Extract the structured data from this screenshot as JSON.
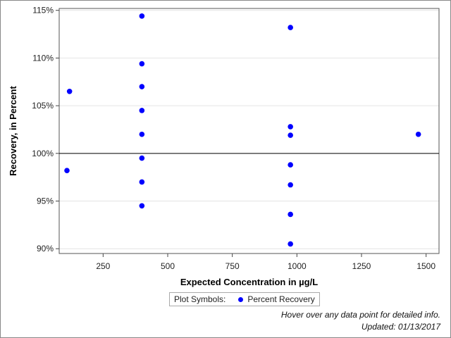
{
  "chart_data": {
    "type": "scatter",
    "xlabel": "Expected Concentration in µg/L",
    "ylabel": "Recovery, in Percent",
    "xlim": [
      80,
      1550
    ],
    "ylim": [
      89.5,
      115.2
    ],
    "xticks": [
      250,
      500,
      750,
      1000,
      1250,
      1500
    ],
    "yticks": [
      90,
      95,
      100,
      105,
      110,
      115
    ],
    "xtick_labels": [
      "250",
      "500",
      "750",
      "1000",
      "1250",
      "1500"
    ],
    "ytick_labels": [
      "90%",
      "95%",
      "100%",
      "105%",
      "110%",
      "115%"
    ],
    "reference_line_y": 100,
    "grid": "horizontal",
    "legend_position": "bottom",
    "series": [
      {
        "name": "Percent Recovery",
        "color": "#0000ff",
        "points": [
          {
            "x": 110,
            "y": 98.2
          },
          {
            "x": 120,
            "y": 106.5
          },
          {
            "x": 400,
            "y": 114.4
          },
          {
            "x": 400,
            "y": 109.4
          },
          {
            "x": 400,
            "y": 107.0
          },
          {
            "x": 400,
            "y": 104.5
          },
          {
            "x": 400,
            "y": 102.0
          },
          {
            "x": 400,
            "y": 99.5
          },
          {
            "x": 400,
            "y": 97.0
          },
          {
            "x": 400,
            "y": 94.5
          },
          {
            "x": 975,
            "y": 113.2
          },
          {
            "x": 975,
            "y": 102.8
          },
          {
            "x": 975,
            "y": 101.9
          },
          {
            "x": 975,
            "y": 98.8
          },
          {
            "x": 975,
            "y": 96.7
          },
          {
            "x": 975,
            "y": 93.6
          },
          {
            "x": 975,
            "y": 90.5
          },
          {
            "x": 1470,
            "y": 102.0
          }
        ]
      }
    ]
  },
  "legend": {
    "title": "Plot Symbols:",
    "items": [
      {
        "label": "Percent Recovery",
        "color": "#0000ff"
      }
    ]
  },
  "notes": {
    "hover": "Hover over any data point for detailed info.",
    "updated": "Updated: 01/13/2017"
  }
}
